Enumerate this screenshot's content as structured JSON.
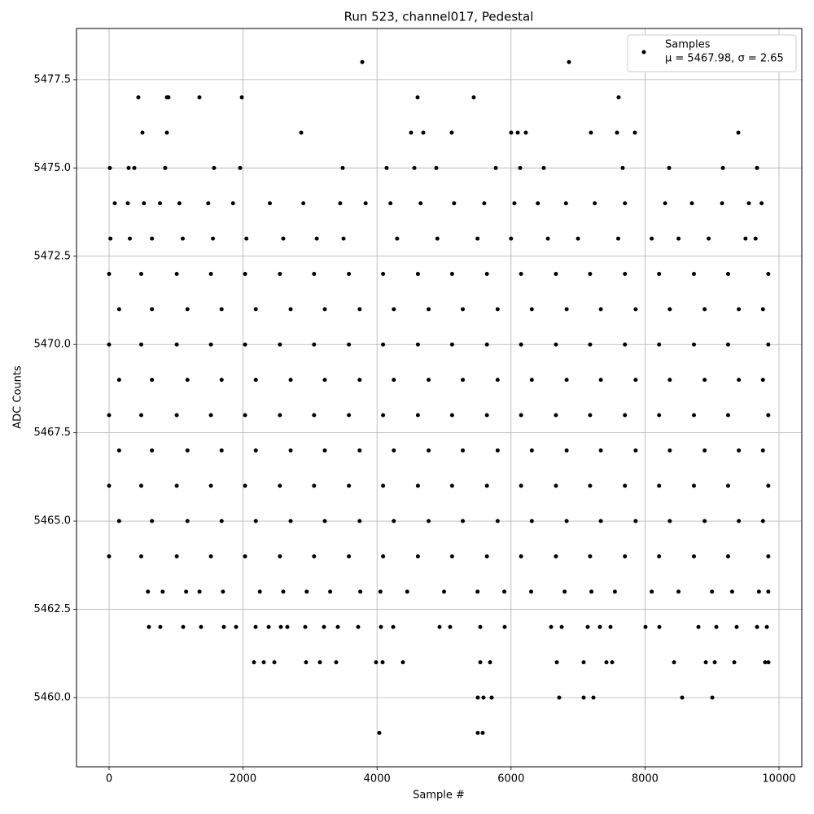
{
  "chart_data": {
    "type": "scatter",
    "title": "Run 523, channel017, Pedestal",
    "x_label": "Sample #",
    "y_label": "ADC Counts",
    "xlim": [
      -486,
      10340
    ],
    "ylim": [
      5458.04,
      5478.95
    ],
    "xticks": [
      0,
      2000,
      4000,
      6000,
      8000,
      10000
    ],
    "yticks": [
      {
        "value": 5460,
        "label": "5460.0"
      },
      {
        "value": 5462.5,
        "label": "5462.5"
      },
      {
        "value": 5465,
        "label": "5465.0"
      },
      {
        "value": 5467.5,
        "label": "5467.5"
      },
      {
        "value": 5470,
        "label": "5470.0"
      },
      {
        "value": 5472.5,
        "label": "5472.5"
      },
      {
        "value": 5475,
        "label": "5475.0"
      },
      {
        "value": 5477.5,
        "label": "5477.5"
      }
    ],
    "grid": true,
    "legend": "upper right",
    "series": [
      {
        "name": "Samples",
        "label_extra": "μ = 5467.98, σ = 2.65",
        "color": "#000000",
        "x": [
          3779,
          6865,
          437,
          863,
          887,
          1349,
          1981,
          4605,
          5443,
          7606,
          498,
          863,
          2868,
          4508,
          4690,
          5115,
          6002,
          6100,
          6221,
          7193,
          7582,
          7849,
          9393,
          12,
          292,
          377,
          838,
          1567,
          1956,
          3487,
          4143,
          4557,
          4885,
          5772,
          6136,
          6488,
          7667,
          8360,
          9162,
          9672,
          85,
          280,
          520,
          760,
          1050,
          1480,
          1850,
          2400,
          2900,
          3450,
          3830,
          4200,
          4650,
          5150,
          5600,
          6050,
          6400,
          6820,
          7250,
          7700,
          8300,
          8700,
          9150,
          9550,
          9740,
          20,
          310,
          640,
          1100,
          1550,
          2050,
          2600,
          3100,
          3500,
          4300,
          4900,
          5500,
          6000,
          6550,
          7000,
          7600,
          8100,
          8500,
          8950,
          9500,
          9650,
          0,
          480,
          1010,
          1520,
          2030,
          2550,
          3060,
          3580,
          4090,
          4610,
          5120,
          5640,
          6150,
          6670,
          7180,
          7700,
          8210,
          8730,
          9240,
          9840,
          150,
          640,
          1170,
          1680,
          2190,
          2710,
          3220,
          3740,
          4250,
          4770,
          5280,
          5800,
          6310,
          6830,
          7340,
          7860,
          8370,
          8890,
          9400,
          9760,
          0,
          480,
          1010,
          1520,
          2030,
          2550,
          3060,
          3580,
          4090,
          4610,
          5120,
          5640,
          6150,
          6670,
          7180,
          7700,
          8210,
          8730,
          9240,
          9840,
          150,
          640,
          1170,
          1680,
          2190,
          2710,
          3220,
          3740,
          4250,
          4770,
          5280,
          5800,
          6310,
          6830,
          7340,
          7860,
          8370,
          8890,
          9400,
          9760,
          0,
          480,
          1010,
          1520,
          2030,
          2550,
          3060,
          3580,
          4090,
          4610,
          5120,
          5640,
          6150,
          6670,
          7180,
          7700,
          8210,
          8730,
          9240,
          9840,
          150,
          640,
          1170,
          1680,
          2190,
          2710,
          3220,
          3740,
          4250,
          4770,
          5280,
          5800,
          6310,
          6830,
          7340,
          7860,
          8370,
          8890,
          9400,
          9760,
          0,
          480,
          1010,
          1520,
          2030,
          2550,
          3060,
          3580,
          4090,
          4610,
          5120,
          5640,
          6150,
          6670,
          7180,
          7700,
          8210,
          8730,
          9240,
          9840,
          150,
          640,
          1170,
          1680,
          2190,
          2710,
          3220,
          3740,
          4250,
          4770,
          5280,
          5800,
          6310,
          6830,
          7340,
          7860,
          8370,
          8890,
          9400,
          9760,
          0,
          480,
          1010,
          1520,
          2030,
          2550,
          3060,
          3580,
          4090,
          4610,
          5120,
          5640,
          6150,
          6670,
          7180,
          7700,
          8210,
          8730,
          9240,
          9840,
          580,
          800,
          1150,
          1350,
          1700,
          2250,
          2600,
          2950,
          3300,
          3750,
          4050,
          4450,
          5000,
          5500,
          5900,
          6300,
          6800,
          7200,
          7550,
          8100,
          8500,
          9000,
          9300,
          9700,
          9840,
          595,
          765,
          1106,
          1373,
          1713,
          1896,
          2187,
          2382,
          2564,
          2661,
          2928,
          3208,
          3414,
          3718,
          4058,
          4241,
          4933,
          5091,
          5541,
          5905,
          6598,
          6756,
          7145,
          7327,
          7485,
          8007,
          8214,
          8797,
          9064,
          9368,
          9672,
          9818,
          2163,
          2309,
          2467,
          2940,
          3147,
          3390,
          3985,
          4083,
          4386,
          5541,
          5687,
          6683,
          7084,
          7424,
          7509,
          8433,
          8907,
          9040,
          9332,
          9793,
          9842,
          5504,
          5589,
          5711,
          6719,
          7084,
          7230,
          8554,
          9004,
          4034,
          5504,
          5577
        ],
        "values": [
          5478,
          5478,
          5477,
          5477,
          5477,
          5477,
          5477,
          5477,
          5477,
          5477,
          5476,
          5476,
          5476,
          5476,
          5476,
          5476,
          5476,
          5476,
          5476,
          5476,
          5476,
          5476,
          5476,
          5475,
          5475,
          5475,
          5475,
          5475,
          5475,
          5475,
          5475,
          5475,
          5475,
          5475,
          5475,
          5475,
          5475,
          5475,
          5475,
          5475,
          5474,
          5474,
          5474,
          5474,
          5474,
          5474,
          5474,
          5474,
          5474,
          5474,
          5474,
          5474,
          5474,
          5474,
          5474,
          5474,
          5474,
          5474,
          5474,
          5474,
          5474,
          5474,
          5474,
          5474,
          5474,
          5473,
          5473,
          5473,
          5473,
          5473,
          5473,
          5473,
          5473,
          5473,
          5473,
          5473,
          5473,
          5473,
          5473,
          5473,
          5473,
          5473,
          5473,
          5473,
          5473,
          5473,
          5472,
          5472,
          5472,
          5472,
          5472,
          5472,
          5472,
          5472,
          5472,
          5472,
          5472,
          5472,
          5472,
          5472,
          5472,
          5472,
          5472,
          5472,
          5472,
          5472,
          5471,
          5471,
          5471,
          5471,
          5471,
          5471,
          5471,
          5471,
          5471,
          5471,
          5471,
          5471,
          5471,
          5471,
          5471,
          5471,
          5471,
          5471,
          5471,
          5471,
          5470,
          5470,
          5470,
          5470,
          5470,
          5470,
          5470,
          5470,
          5470,
          5470,
          5470,
          5470,
          5470,
          5470,
          5470,
          5470,
          5470,
          5470,
          5470,
          5470,
          5469,
          5469,
          5469,
          5469,
          5469,
          5469,
          5469,
          5469,
          5469,
          5469,
          5469,
          5469,
          5469,
          5469,
          5469,
          5469,
          5469,
          5469,
          5469,
          5469,
          5468,
          5468,
          5468,
          5468,
          5468,
          5468,
          5468,
          5468,
          5468,
          5468,
          5468,
          5468,
          5468,
          5468,
          5468,
          5468,
          5468,
          5468,
          5468,
          5468,
          5467,
          5467,
          5467,
          5467,
          5467,
          5467,
          5467,
          5467,
          5467,
          5467,
          5467,
          5467,
          5467,
          5467,
          5467,
          5467,
          5467,
          5467,
          5467,
          5467,
          5466,
          5466,
          5466,
          5466,
          5466,
          5466,
          5466,
          5466,
          5466,
          5466,
          5466,
          5466,
          5466,
          5466,
          5466,
          5466,
          5466,
          5466,
          5466,
          5466,
          5465,
          5465,
          5465,
          5465,
          5465,
          5465,
          5465,
          5465,
          5465,
          5465,
          5465,
          5465,
          5465,
          5465,
          5465,
          5465,
          5465,
          5465,
          5465,
          5465,
          5464,
          5464,
          5464,
          5464,
          5464,
          5464,
          5464,
          5464,
          5464,
          5464,
          5464,
          5464,
          5464,
          5464,
          5464,
          5464,
          5464,
          5464,
          5464,
          5464,
          5463,
          5463,
          5463,
          5463,
          5463,
          5463,
          5463,
          5463,
          5463,
          5463,
          5463,
          5463,
          5463,
          5463,
          5463,
          5463,
          5463,
          5463,
          5463,
          5463,
          5463,
          5463,
          5463,
          5463,
          5463,
          5462,
          5462,
          5462,
          5462,
          5462,
          5462,
          5462,
          5462,
          5462,
          5462,
          5462,
          5462,
          5462,
          5462,
          5462,
          5462,
          5462,
          5462,
          5462,
          5462,
          5462,
          5462,
          5462,
          5462,
          5462,
          5462,
          5462,
          5462,
          5462,
          5462,
          5462,
          5462,
          5461,
          5461,
          5461,
          5461,
          5461,
          5461,
          5461,
          5461,
          5461,
          5461,
          5461,
          5461,
          5461,
          5461,
          5461,
          5461,
          5461,
          5461,
          5461,
          5461,
          5461,
          5460,
          5460,
          5460,
          5460,
          5460,
          5460,
          5460,
          5460,
          5459,
          5459,
          5459
        ]
      }
    ]
  }
}
